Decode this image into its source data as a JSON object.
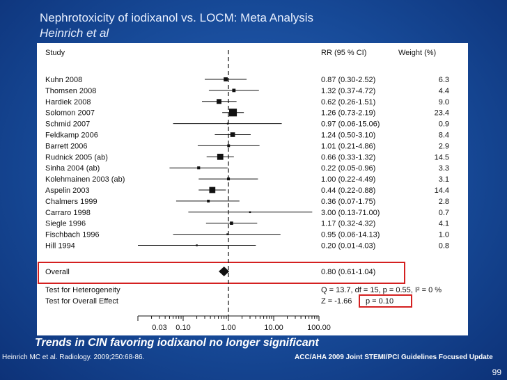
{
  "slide": {
    "title": "Nephrotoxicity of iodixanol vs. LOCM: Meta Analysis",
    "subtitle": "Heinrich et al",
    "conclusion": "Trends in CIN favoring iodixanol no longer significant",
    "citation": "Heinrich MC et al. Radiology. 2009;250:68-86.",
    "guideline": "ACC/AHA 2009 Joint STEMI/PCI Guidelines Focused Update",
    "page_number": "99"
  },
  "chart_data": {
    "type": "forest",
    "scale": "log",
    "headers": {
      "study": "Study",
      "rr": "RR (95 % CI)",
      "weight": "Weight (%)"
    },
    "studies": [
      {
        "name": "Kuhn 2008",
        "rr": 0.87,
        "lo": 0.3,
        "hi": 2.52,
        "rr_text": "0.87 (0.30-2.52)",
        "weight": 6.3,
        "weight_text": "6.3"
      },
      {
        "name": "Thomsen 2008",
        "rr": 1.32,
        "lo": 0.37,
        "hi": 4.72,
        "rr_text": "1.32 (0.37-4.72)",
        "weight": 4.4,
        "weight_text": "4.4"
      },
      {
        "name": "Hardiek 2008",
        "rr": 0.62,
        "lo": 0.26,
        "hi": 1.51,
        "rr_text": "0.62 (0.26-1.51)",
        "weight": 9.0,
        "weight_text": "9.0"
      },
      {
        "name": "Solomon 2007",
        "rr": 1.26,
        "lo": 0.73,
        "hi": 2.19,
        "rr_text": "1.26 (0.73-2.19)",
        "weight": 23.4,
        "weight_text": "23.4"
      },
      {
        "name": "Schmid 2007",
        "rr": 0.97,
        "lo": 0.06,
        "hi": 15.06,
        "rr_text": "0.97 (0.06-15.06)",
        "weight": 0.9,
        "weight_text": "0.9"
      },
      {
        "name": "Feldkamp 2006",
        "rr": 1.24,
        "lo": 0.5,
        "hi": 3.1,
        "rr_text": "1.24 (0.50-3.10)",
        "weight": 8.4,
        "weight_text": "8.4"
      },
      {
        "name": "Barrett 2006",
        "rr": 1.01,
        "lo": 0.21,
        "hi": 4.86,
        "rr_text": "1.01 (0.21-4.86)",
        "weight": 2.9,
        "weight_text": "2.9"
      },
      {
        "name": "Rudnick 2005 (ab)",
        "rr": 0.66,
        "lo": 0.33,
        "hi": 1.32,
        "rr_text": "0.66 (0.33-1.32)",
        "weight": 14.5,
        "weight_text": "14.5"
      },
      {
        "name": "Sinha 2004 (ab)",
        "rr": 0.22,
        "lo": 0.05,
        "hi": 0.96,
        "rr_text": "0.22 (0.05-0.96)",
        "weight": 3.3,
        "weight_text": "3.3"
      },
      {
        "name": "Kolehmainen 2003 (ab)",
        "rr": 1.0,
        "lo": 0.22,
        "hi": 4.49,
        "rr_text": "1.00 (0.22-4.49)",
        "weight": 3.1,
        "weight_text": "3.1"
      },
      {
        "name": "Aspelin 2003",
        "rr": 0.44,
        "lo": 0.22,
        "hi": 0.88,
        "rr_text": "0.44 (0.22-0.88)",
        "weight": 14.4,
        "weight_text": "14.4"
      },
      {
        "name": "Chalmers 1999",
        "rr": 0.36,
        "lo": 0.07,
        "hi": 1.75,
        "rr_text": "0.36 (0.07-1.75)",
        "weight": 2.8,
        "weight_text": "2.8"
      },
      {
        "name": "Carraro 1998",
        "rr": 3.0,
        "lo": 0.13,
        "hi": 71.0,
        "rr_text": "3.00 (0.13-71.00)",
        "weight": 0.7,
        "weight_text": "0.7"
      },
      {
        "name": "Siegle 1996",
        "rr": 1.17,
        "lo": 0.32,
        "hi": 4.32,
        "rr_text": "1.17 (0.32-4.32)",
        "weight": 4.1,
        "weight_text": "4.1"
      },
      {
        "name": "Fischbach 1996",
        "rr": 0.95,
        "lo": 0.06,
        "hi": 14.13,
        "rr_text": "0.95 (0.06-14.13)",
        "weight": 1.0,
        "weight_text": "1.0"
      },
      {
        "name": "Hill 1994",
        "rr": 0.2,
        "lo": 0.01,
        "hi": 4.03,
        "rr_text": "0.20 (0.01-4.03)",
        "weight": 0.8,
        "weight_text": "0.8"
      }
    ],
    "overall": {
      "name": "Overall",
      "rr": 0.8,
      "lo": 0.61,
      "hi": 1.04,
      "rr_text": "0.80 (0.61-1.04)"
    },
    "heterogeneity": {
      "label": "Test for Heterogeneity",
      "text": "Q = 13.7,  df = 15,  p = 0.55,  I² = 0 %"
    },
    "overall_effect": {
      "label": "Test for Overall Effect",
      "z_text": "Z = -1.66",
      "p_text": "p = 0.10"
    },
    "x_ticks": [
      {
        "value": 0.03,
        "label": "0.03"
      },
      {
        "value": 0.1,
        "label": "0.10"
      },
      {
        "value": 1.0,
        "label": "1.00"
      },
      {
        "value": 10.0,
        "label": "10.00"
      },
      {
        "value": 100.0,
        "label": "100.00"
      }
    ],
    "xlim": [
      0.01,
      100
    ],
    "reference_line": 1.0,
    "colors": {
      "highlight": "#d42020"
    }
  }
}
